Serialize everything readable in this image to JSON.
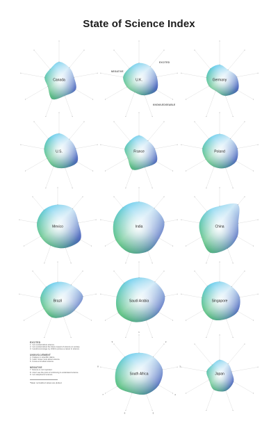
{
  "title": "State of Science Index",
  "legend": {
    "groups": [
      {
        "name": "EXCITED",
        "items": [
          "1. I am excited about science.",
          "2. I am excited about the future impact of science on society.",
          "3. I would encourage my child to pursue a career in science."
        ]
      },
      {
        "name": "UNINVOLVEMENT",
        "items": [
          "4. I believe in scientific claims.",
          "5. I wish I knew more about science.",
          "6. I know a lot about science."
        ]
      },
      {
        "name": "NEGATIVE",
        "items": [
          "7. Science is not important.",
          "8. I don't see the point of continuing to understand science.",
          "9. I am skeptical of science."
        ]
      }
    ],
    "note": "*Mean normalized values are plotted."
  },
  "axis_callouts": {
    "excited": "EXCITED",
    "negative": "NEGATIVE",
    "knowledgeable": "KNOWLEDGEABLE"
  },
  "colors": {
    "green": "#2fb34f",
    "cyan": "#46c4e8",
    "blue": "#2c45ad",
    "white": "#ffffff",
    "spoke": "#d4d4d4"
  },
  "chart_data": {
    "type": "radar",
    "axes": [
      "1",
      "2",
      "3",
      "4",
      "5",
      "6",
      "7",
      "8",
      "9"
    ],
    "countries": [
      {
        "name": "Canada",
        "values": [
          0.62,
          0.55,
          0.52,
          0.66,
          0.58,
          0.7,
          0.45,
          0.5,
          0.48
        ]
      },
      {
        "name": "U.K.",
        "values": [
          0.58,
          0.6,
          0.62,
          0.7,
          0.56,
          0.45,
          0.48,
          0.55,
          0.52
        ]
      },
      {
        "name": "Germany",
        "values": [
          0.52,
          0.45,
          0.6,
          0.72,
          0.58,
          0.4,
          0.42,
          0.46,
          0.5
        ]
      },
      {
        "name": "U.S.",
        "values": [
          0.62,
          0.55,
          0.58,
          0.72,
          0.6,
          0.55,
          0.48,
          0.52,
          0.58
        ]
      },
      {
        "name": "France",
        "values": [
          0.55,
          0.48,
          0.55,
          0.7,
          0.58,
          0.66,
          0.45,
          0.5,
          0.48
        ]
      },
      {
        "name": "Poland",
        "values": [
          0.6,
          0.58,
          0.62,
          0.66,
          0.6,
          0.56,
          0.55,
          0.6,
          0.58
        ]
      },
      {
        "name": "Mexico",
        "values": [
          0.75,
          0.8,
          0.72,
          0.9,
          0.78,
          0.7,
          0.68,
          0.72,
          0.74
        ]
      },
      {
        "name": "India",
        "values": [
          0.85,
          0.82,
          0.88,
          0.8,
          0.9,
          0.95,
          0.92,
          0.88,
          0.86
        ]
      },
      {
        "name": "China",
        "values": [
          0.7,
          0.98,
          0.65,
          0.7,
          0.8,
          0.95,
          0.72,
          0.7,
          0.68
        ]
      },
      {
        "name": "Brazil",
        "values": [
          0.65,
          0.72,
          0.88,
          0.66,
          0.58,
          0.6,
          0.55,
          0.6,
          0.62
        ]
      },
      {
        "name": "Saudi Arabia",
        "values": [
          0.8,
          0.85,
          0.9,
          0.78,
          0.72,
          0.75,
          0.82,
          0.78,
          0.8
        ]
      },
      {
        "name": "Singapore",
        "values": [
          0.66,
          0.64,
          0.7,
          0.72,
          0.66,
          0.68,
          0.64,
          0.62,
          0.66
        ]
      },
      {
        "name": "South Africa",
        "values": [
          0.72,
          0.76,
          0.82,
          0.78,
          0.74,
          0.7,
          0.86,
          0.8,
          0.76
        ]
      },
      {
        "name": "Japan",
        "values": [
          0.48,
          0.45,
          0.42,
          0.55,
          0.62,
          0.58,
          0.42,
          0.45,
          0.4
        ]
      }
    ]
  }
}
